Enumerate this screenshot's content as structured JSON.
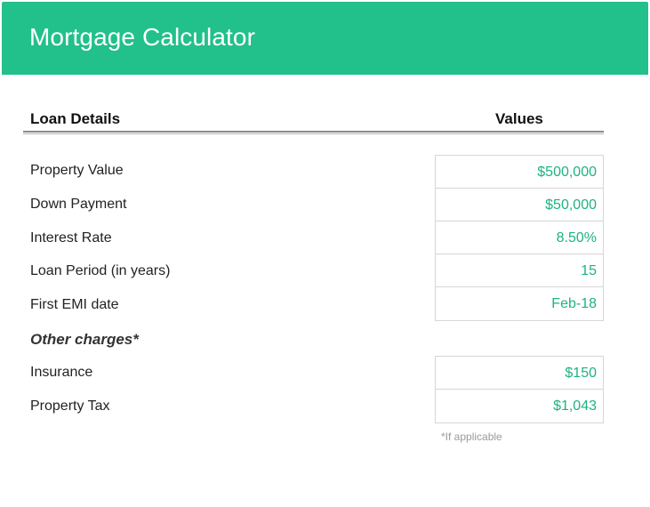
{
  "header": {
    "title": "Mortgage Calculator"
  },
  "table": {
    "col_left": "Loan Details",
    "col_right": "Values"
  },
  "loan_details": [
    {
      "label": "Property Value",
      "value": "$500,000"
    },
    {
      "label": "Down Payment",
      "value": "$50,000"
    },
    {
      "label": "Interest Rate",
      "value": "8.50%"
    },
    {
      "label": "Loan Period (in years)",
      "value": "15"
    },
    {
      "label": "First EMI date",
      "value": "Feb-18"
    }
  ],
  "other_charges": {
    "heading": "Other charges*",
    "items": [
      {
        "label": "Insurance",
        "value": "$150"
      },
      {
        "label": "Property Tax",
        "value": "$1,043"
      }
    ],
    "footnote": "*If applicable"
  },
  "colors": {
    "header_bg": "#22c08b",
    "value_text": "#1db37f"
  }
}
